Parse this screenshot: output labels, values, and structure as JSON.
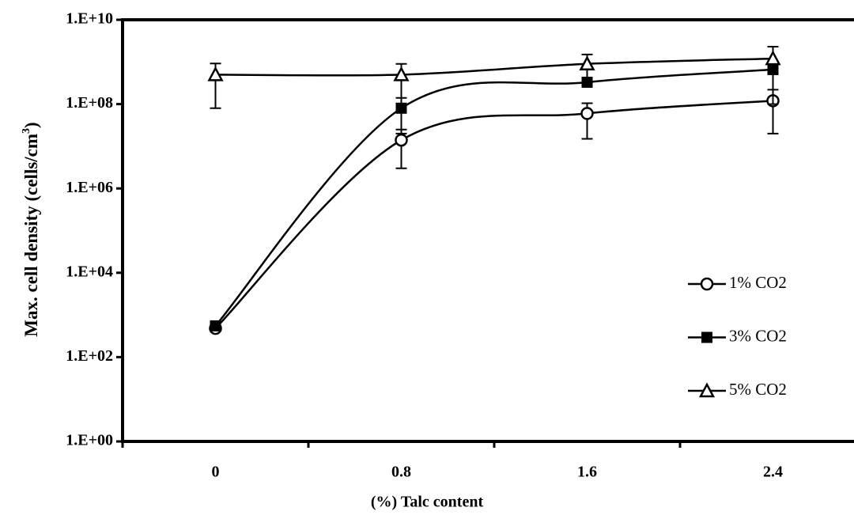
{
  "chart_data": {
    "type": "line",
    "x_label": "(%) Talc content",
    "y_label": "Max. cell density (cells/cm",
    "y_label_sup": "3",
    "y_label_end": ")",
    "categories": [
      "0",
      "0.8",
      "1.6",
      "2.4"
    ],
    "log_scale": true,
    "ylim": [
      1,
      10000000000
    ],
    "yticks": [
      {
        "value": 1,
        "label": "1.E+00"
      },
      {
        "value": 100,
        "label": "1.E+02"
      },
      {
        "value": 10000,
        "label": "1.E+04"
      },
      {
        "value": 1000000,
        "label": "1.E+06"
      },
      {
        "value": 100000000,
        "label": "1.E+08"
      },
      {
        "value": 10000000000,
        "label": "1.E+10"
      }
    ],
    "legend": "right",
    "series": [
      {
        "name": "1% CO2",
        "color": "#000000",
        "marker": "circle-open",
        "values": [
          480,
          14000000,
          60000000,
          120000000
        ],
        "errors": [
          60,
          11000000,
          45000000,
          100000000
        ]
      },
      {
        "name": "3% CO2",
        "color": "#000000",
        "marker": "square-filled",
        "values": [
          550,
          80000000,
          330000000,
          660000000
        ],
        "errors": [
          60,
          60000000,
          50000000,
          100000000
        ]
      },
      {
        "name": "5% CO2",
        "color": "#000000",
        "marker": "triangle-open",
        "values": [
          500000000,
          500000000,
          900000000,
          1200000000
        ],
        "errors": [
          420000000,
          400000000,
          600000000,
          1100000000
        ]
      }
    ]
  }
}
